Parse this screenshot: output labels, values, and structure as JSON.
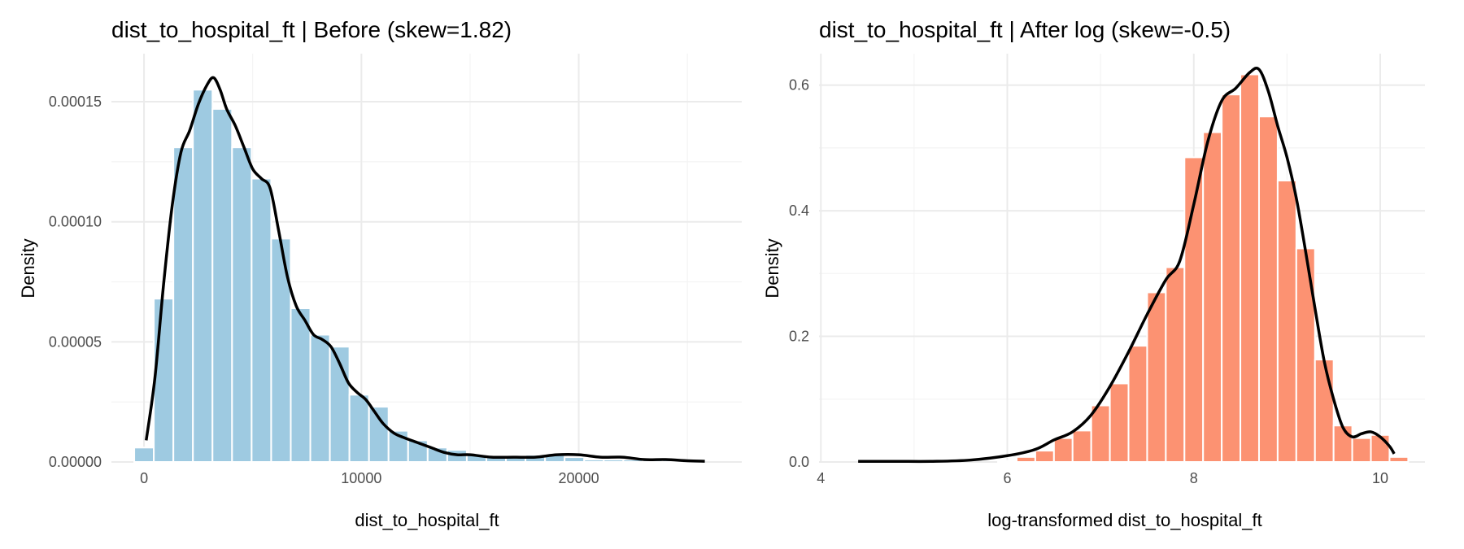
{
  "chart_data": [
    {
      "type": "bar",
      "title": "dist_to_hospital_ft | Before (skew=1.82)",
      "xlabel": "dist_to_hospital_ft",
      "ylabel": "Density",
      "xlim": [
        -1500,
        27500
      ],
      "ylim": [
        0,
        0.00017
      ],
      "x_ticks": [
        0,
        10000,
        20000
      ],
      "x_tick_labels": [
        "0",
        "10000",
        "20000"
      ],
      "y_ticks": [
        0,
        5e-05,
        0.0001,
        0.00015
      ],
      "y_tick_labels": [
        "0.00000",
        "0.00005",
        "0.00010",
        "0.00015"
      ],
      "bar_color": "#9ecae1",
      "bin_width": 900,
      "bins": [
        {
          "x": 0,
          "density": 6e-06
        },
        {
          "x": 900,
          "density": 6.8e-05
        },
        {
          "x": 1800,
          "density": 0.000131
        },
        {
          "x": 2700,
          "density": 0.000155
        },
        {
          "x": 3600,
          "density": 0.000147
        },
        {
          "x": 4500,
          "density": 0.000131
        },
        {
          "x": 5400,
          "density": 0.000118
        },
        {
          "x": 6300,
          "density": 9.3e-05
        },
        {
          "x": 7200,
          "density": 6.4e-05
        },
        {
          "x": 8100,
          "density": 5.3e-05
        },
        {
          "x": 9000,
          "density": 4.8e-05
        },
        {
          "x": 9900,
          "density": 2.8e-05
        },
        {
          "x": 10800,
          "density": 2.3e-05
        },
        {
          "x": 11700,
          "density": 1.3e-05
        },
        {
          "x": 12600,
          "density": 9e-06
        },
        {
          "x": 13500,
          "density": 6e-06
        },
        {
          "x": 14400,
          "density": 5e-06
        },
        {
          "x": 15300,
          "density": 3e-06
        },
        {
          "x": 16200,
          "density": 2e-06
        },
        {
          "x": 17100,
          "density": 2e-06
        },
        {
          "x": 18000,
          "density": 3e-06
        },
        {
          "x": 18900,
          "density": 3e-06
        },
        {
          "x": 19800,
          "density": 2e-06
        },
        {
          "x": 20700,
          "density": 1e-06
        },
        {
          "x": 21600,
          "density": 1e-06
        },
        {
          "x": 22500,
          "density": 1e-06
        },
        {
          "x": 23400,
          "density": 1e-06
        },
        {
          "x": 24300,
          "density": 1e-06
        }
      ],
      "density_curve": {
        "x": [
          100,
          500,
          900,
          1300,
          1700,
          2100,
          2500,
          2900,
          3200,
          3500,
          3800,
          4200,
          4600,
          5000,
          5400,
          5800,
          6200,
          6600,
          7000,
          7400,
          7800,
          8200,
          8600,
          9000,
          9400,
          9800,
          10200,
          10600,
          11000,
          11500,
          12000,
          12600,
          13200,
          13800,
          14400,
          15000,
          16000,
          17000,
          18000,
          19000,
          20000,
          21000,
          22000,
          23000,
          24000,
          25000,
          25800
        ],
        "y": [
          9e-06,
          3.5e-05,
          7.4e-05,
          0.000107,
          0.000129,
          0.000138,
          0.000149,
          0.000157,
          0.00016,
          0.000155,
          0.000147,
          0.00014,
          0.000131,
          0.000122,
          0.000118,
          0.000114,
          9.6e-05,
          7.7e-05,
          6.5e-05,
          5.9e-05,
          5.3e-05,
          5.1e-05,
          4.8e-05,
          4.1e-05,
          3.3e-05,
          2.9e-05,
          2.6e-05,
          2.1e-05,
          1.6e-05,
          1.2e-05,
          1e-05,
          8e-06,
          6e-06,
          4e-06,
          3e-06,
          3e-06,
          2e-06,
          2e-06,
          2e-06,
          3e-06,
          3e-06,
          2e-06,
          2e-06,
          1e-06,
          1e-06,
          5e-07,
          3e-07
        ]
      }
    },
    {
      "type": "bar",
      "title": "dist_to_hospital_ft | After log (skew=-0.5)",
      "xlabel": "log-transformed dist_to_hospital_ft",
      "ylabel": "Density",
      "xlim": [
        3.98,
        10.48
      ],
      "ylim": [
        0,
        0.65
      ],
      "x_ticks": [
        4,
        6,
        8,
        10
      ],
      "x_tick_labels": [
        "4",
        "6",
        "8",
        "10"
      ],
      "y_ticks": [
        0,
        0.2,
        0.4,
        0.6
      ],
      "y_tick_labels": [
        "0.0",
        "0.2",
        "0.4",
        "0.6"
      ],
      "bar_color": "#fc9272",
      "bin_width": 0.2,
      "bins": [
        {
          "x": 6.0,
          "density": 0.002
        },
        {
          "x": 6.2,
          "density": 0.008
        },
        {
          "x": 6.4,
          "density": 0.018
        },
        {
          "x": 6.6,
          "density": 0.038
        },
        {
          "x": 6.8,
          "density": 0.05
        },
        {
          "x": 7.0,
          "density": 0.09
        },
        {
          "x": 7.2,
          "density": 0.125
        },
        {
          "x": 7.4,
          "density": 0.185
        },
        {
          "x": 7.6,
          "density": 0.27
        },
        {
          "x": 7.8,
          "density": 0.31
        },
        {
          "x": 8.0,
          "density": 0.485
        },
        {
          "x": 8.2,
          "density": 0.525
        },
        {
          "x": 8.4,
          "density": 0.585
        },
        {
          "x": 8.6,
          "density": 0.617
        },
        {
          "x": 8.8,
          "density": 0.55
        },
        {
          "x": 9.0,
          "density": 0.448
        },
        {
          "x": 9.2,
          "density": 0.34
        },
        {
          "x": 9.4,
          "density": 0.163
        },
        {
          "x": 9.6,
          "density": 0.058
        },
        {
          "x": 9.8,
          "density": 0.038
        },
        {
          "x": 10.0,
          "density": 0.043
        },
        {
          "x": 10.2,
          "density": 0.008
        }
      ],
      "density_curve": {
        "x": [
          4.4,
          4.8,
          5.2,
          5.6,
          6.0,
          6.3,
          6.5,
          6.7,
          6.9,
          7.1,
          7.3,
          7.5,
          7.7,
          7.85,
          8.0,
          8.15,
          8.3,
          8.45,
          8.6,
          8.7,
          8.8,
          8.9,
          9.0,
          9.1,
          9.2,
          9.3,
          9.4,
          9.5,
          9.6,
          9.7,
          9.8,
          9.9,
          10.0,
          10.1,
          10.15
        ],
        "y": [
          0.001,
          0.001,
          0.001,
          0.003,
          0.01,
          0.02,
          0.035,
          0.048,
          0.075,
          0.12,
          0.175,
          0.235,
          0.29,
          0.32,
          0.41,
          0.51,
          0.575,
          0.595,
          0.62,
          0.625,
          0.59,
          0.535,
          0.485,
          0.42,
          0.335,
          0.245,
          0.16,
          0.1,
          0.055,
          0.04,
          0.045,
          0.048,
          0.04,
          0.025,
          0.013
        ]
      }
    }
  ]
}
